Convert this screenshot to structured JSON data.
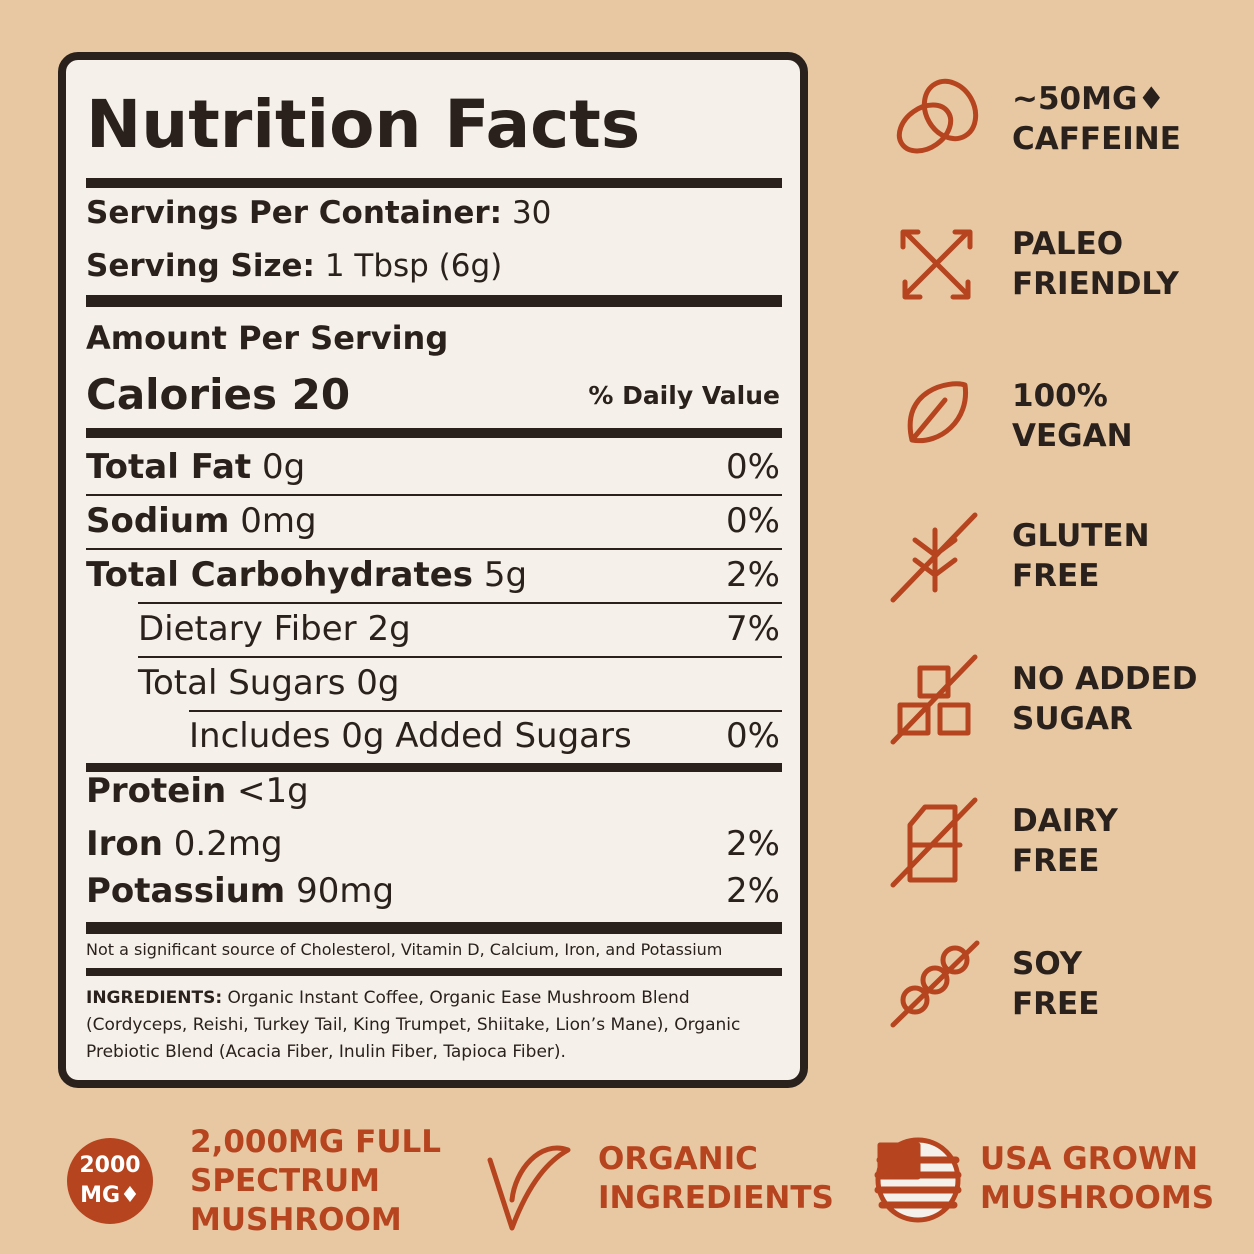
{
  "label": {
    "title": "Nutrition Facts",
    "servings": {
      "label": "Servings Per Container:",
      "value": "30"
    },
    "serving_size": {
      "label": "Serving Size:",
      "value": "1 Tbsp (6g)"
    },
    "amount_heading": "Amount Per Serving",
    "calories": "Calories 20",
    "daily_value_heading": "% Daily Value",
    "rows": [
      {
        "name": "Total Fat",
        "amount": "0g",
        "dv": "0%"
      },
      {
        "name": "Sodium",
        "amount": "0mg",
        "dv": "0%"
      },
      {
        "name": "Total Carbohydrates",
        "amount": "5g",
        "dv": "2%"
      },
      {
        "name": "Dietary Fiber",
        "amount": "2g",
        "dv": "7%"
      },
      {
        "name": "Total Sugars",
        "amount": "0g"
      },
      {
        "name": "Includes 0g Added Sugars",
        "amount": "",
        "dv": "0%"
      },
      {
        "name": "Protein",
        "amount": "<1g"
      },
      {
        "name": "Iron",
        "amount": "0.2mg",
        "dv": "2%"
      },
      {
        "name": "Potassium",
        "amount": "90mg",
        "dv": "2%"
      }
    ],
    "footnote": "Not a significant source of Cholesterol, Vitamin D, Calcium, Iron, and Potassium",
    "ingredients_label": "INGREDIENTS:",
    "ingredients": "Organic Instant Coffee, Organic Ease Mushroom Blend (Cordyceps, Reishi, Turkey Tail, King Trumpet, Shiitake, Lion’s Mane), Organic Prebiotic Blend (Acacia Fiber, Inulin Fiber, Tapioca Fiber)."
  },
  "badges": [
    [
      "~50MG♦",
      "CAFFEINE"
    ],
    [
      "PALEO",
      "FRIENDLY"
    ],
    [
      "100%",
      "VEGAN"
    ],
    [
      "GLUTEN",
      "FREE"
    ],
    [
      "NO ADDED",
      "SUGAR"
    ],
    [
      "DAIRY",
      "FREE"
    ],
    [
      "SOY",
      "FREE"
    ]
  ],
  "bottom": {
    "dose": [
      "2000",
      "MG♦"
    ],
    "items": [
      [
        "2,000MG FULL",
        "SPECTRUM",
        "MUSHROOM"
      ],
      [
        "ORGANIC",
        "INGREDIENTS"
      ],
      [
        "USA GROWN",
        "MUSHROOMS"
      ]
    ]
  }
}
